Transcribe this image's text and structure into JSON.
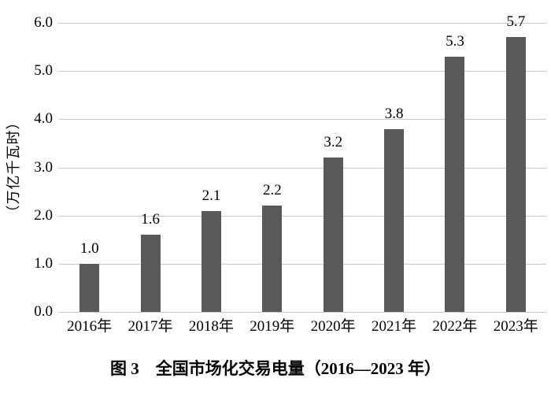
{
  "chart_data": {
    "type": "bar",
    "title": "图 3　全国市场化交易电量（2016—2023 年）",
    "categories": [
      "2016年",
      "2017年",
      "2018年",
      "2019年",
      "2020年",
      "2021年",
      "2022年",
      "2023年"
    ],
    "values": [
      1.0,
      1.6,
      2.1,
      2.2,
      3.2,
      3.8,
      5.3,
      5.7
    ],
    "data_labels": [
      "1.0",
      "1.6",
      "2.1",
      "2.2",
      "3.2",
      "3.8",
      "5.3",
      "5.7"
    ],
    "xlabel": "",
    "ylabel": "（万亿千瓦时）",
    "ylim": [
      0,
      6
    ],
    "yticks": [
      "0.0",
      "1.0",
      "2.0",
      "3.0",
      "4.0",
      "5.0",
      "6.0"
    ],
    "grid": true,
    "legend_position": "none",
    "bar_color": "#595959",
    "gridline_color": "#c9c9c9",
    "text_color": "#000000",
    "background_color": "#ffffff"
  }
}
